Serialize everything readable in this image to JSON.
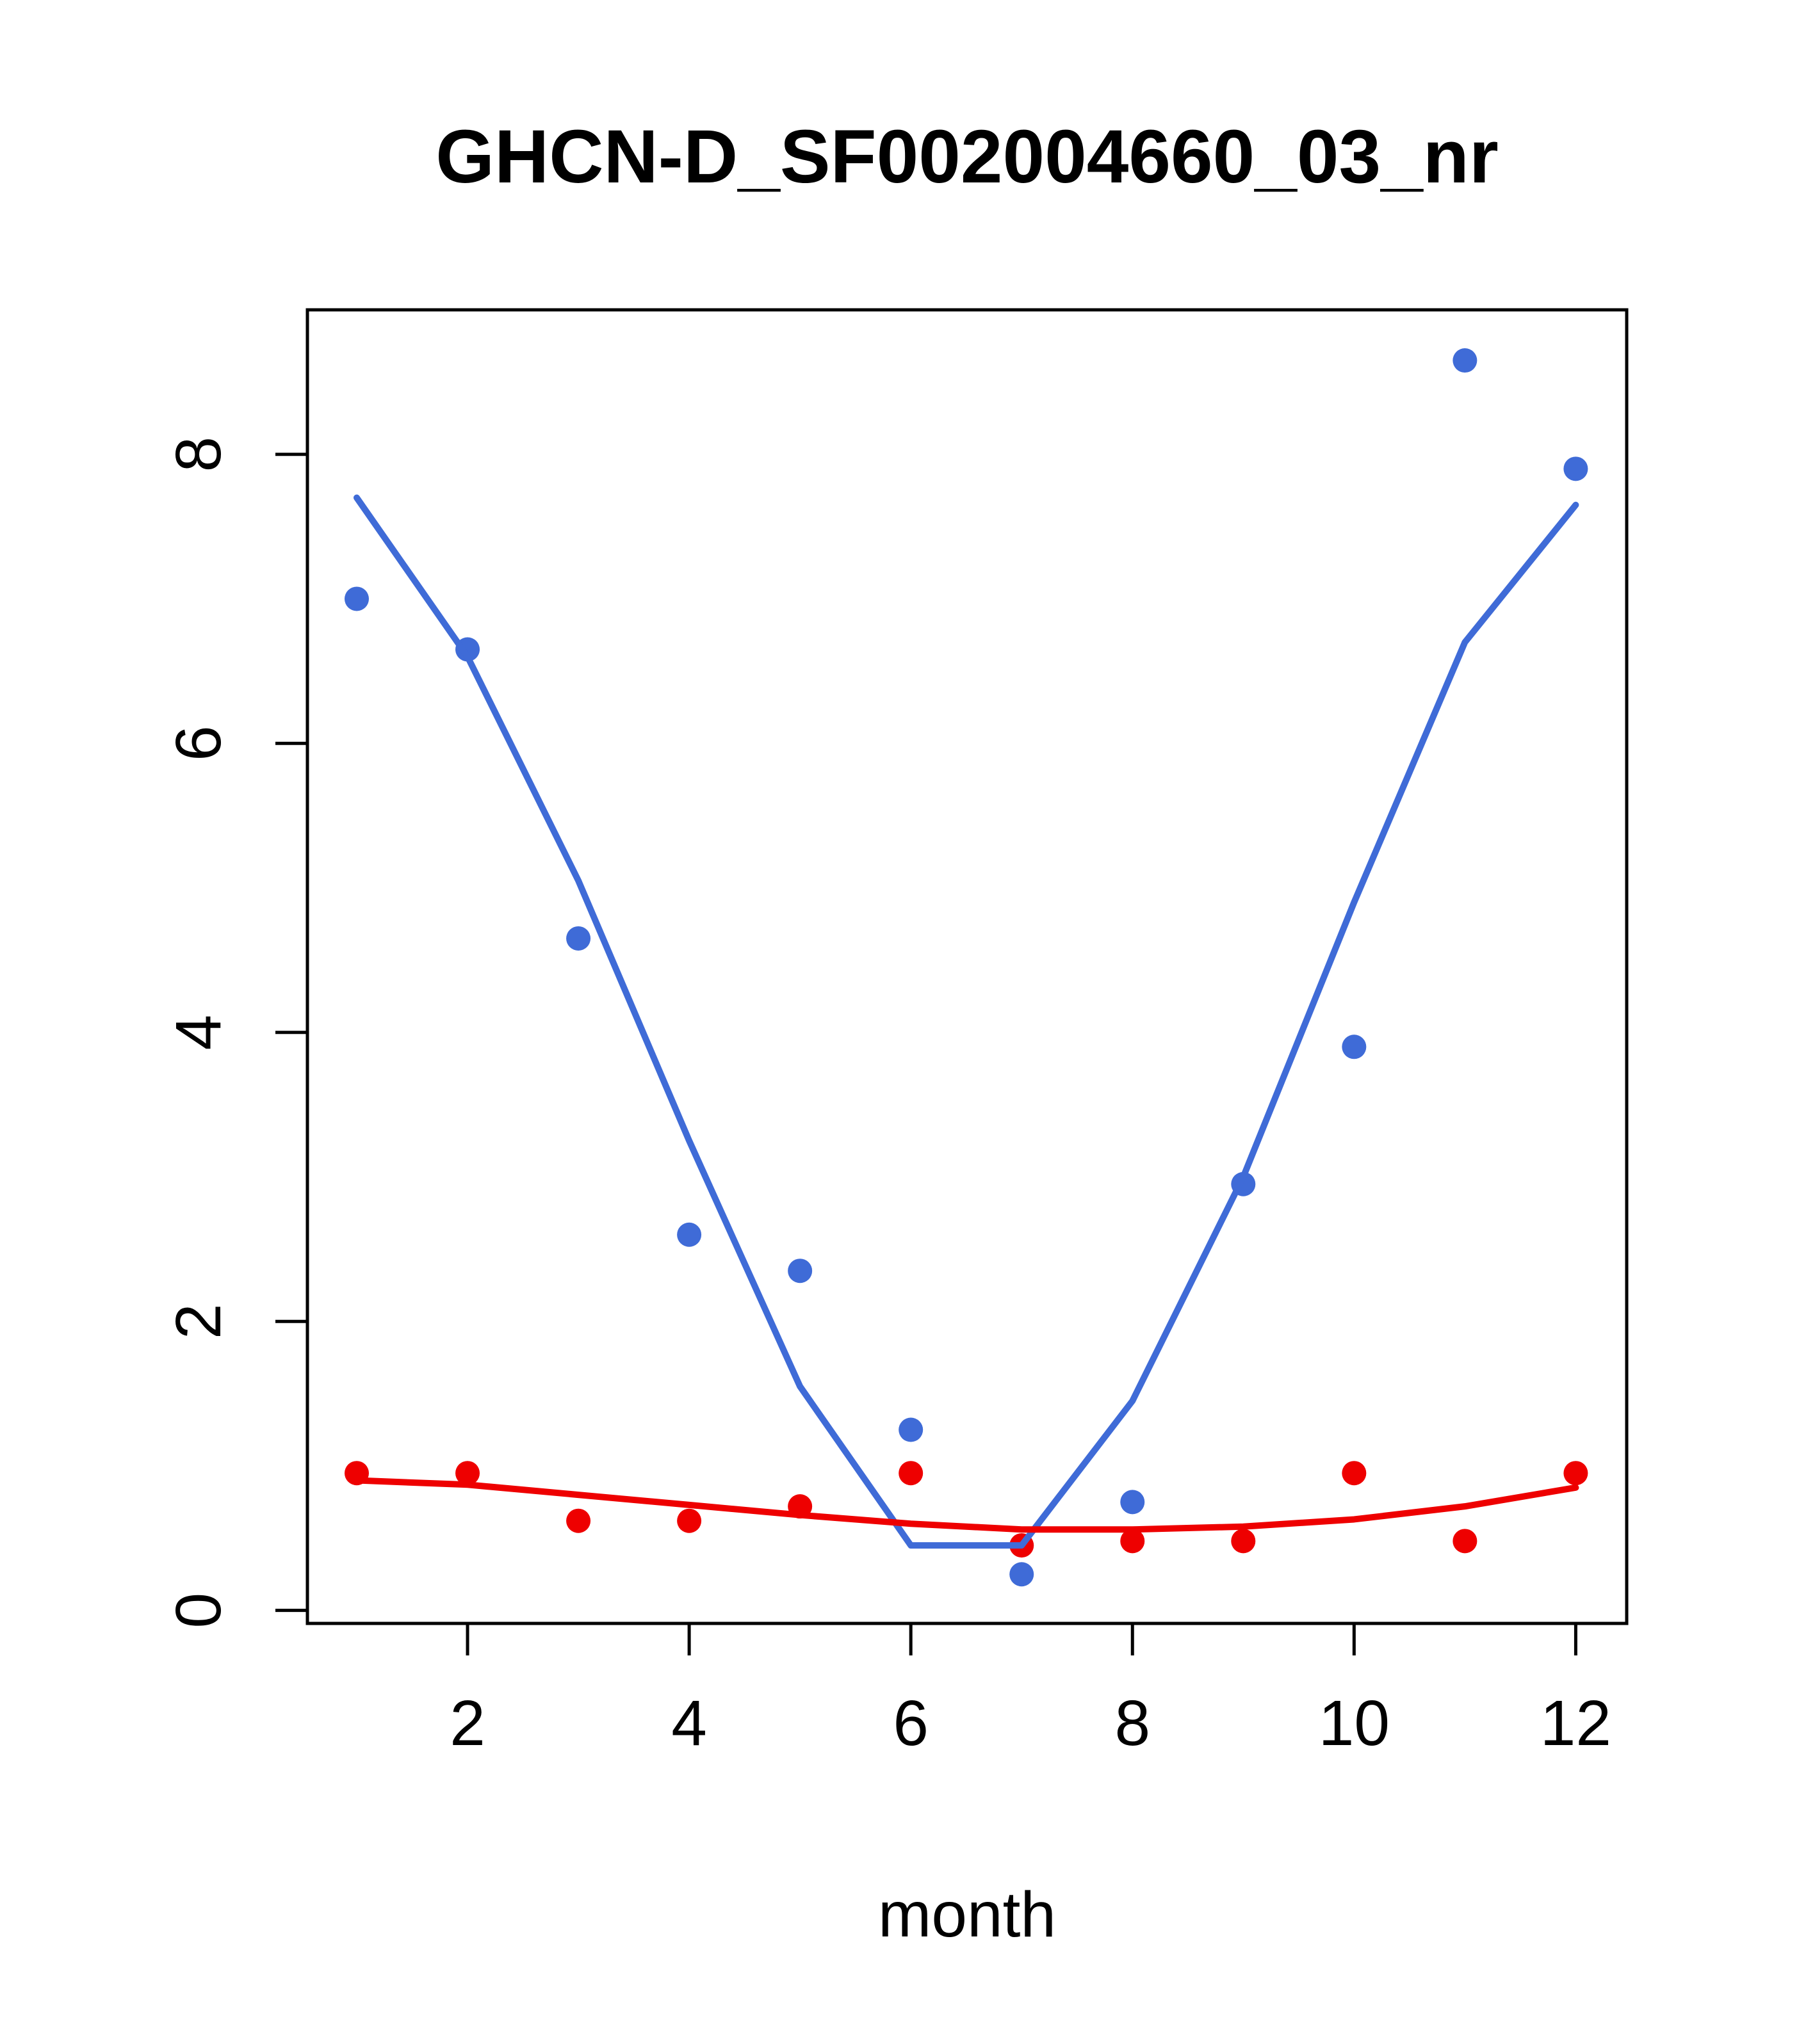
{
  "title": "GHCN-D_SF002004660_03_nr",
  "colors": {
    "blue": "#3F6BD7",
    "red": "#EE0000",
    "axis": "#000000",
    "background": "#FFFFFF"
  },
  "chart_data": {
    "type": "scatter",
    "title": "GHCN-D_SF002004660_03_nr",
    "xlabel": "month",
    "ylabel": "",
    "x_ticks": [
      2,
      4,
      6,
      8,
      10,
      12
    ],
    "y_ticks": [
      0,
      2,
      4,
      6,
      8
    ],
    "xlim": [
      0.555,
      12.46
    ],
    "ylim": [
      -0.09,
      9.0
    ],
    "grid": false,
    "legend": "none",
    "categories": [
      1,
      2,
      3,
      4,
      5,
      6,
      7,
      8,
      9,
      10,
      11,
      12
    ],
    "series": [
      {
        "name": "blue-points",
        "kind": "points",
        "color": "#3F6BD7",
        "x": [
          1,
          2,
          3,
          4,
          5,
          6,
          7,
          8,
          9,
          10,
          11,
          12
        ],
        "y": [
          7.0,
          6.65,
          4.65,
          2.6,
          2.35,
          1.25,
          0.25,
          0.75,
          2.95,
          3.9,
          8.65,
          7.9
        ]
      },
      {
        "name": "red-points",
        "kind": "points",
        "color": "#EE0000",
        "x": [
          1,
          2,
          3,
          4,
          5,
          6,
          7,
          8,
          9,
          10,
          11,
          12
        ],
        "y": [
          0.95,
          0.95,
          0.62,
          0.62,
          0.72,
          0.95,
          0.45,
          0.48,
          0.48,
          0.95,
          0.48,
          0.95
        ]
      },
      {
        "name": "blue-fit-line",
        "kind": "line",
        "color": "#3F6BD7",
        "x": [
          1,
          2,
          3,
          4,
          5,
          6,
          7,
          8,
          9,
          10,
          11,
          12
        ],
        "y": [
          7.7,
          6.6,
          5.05,
          3.25,
          1.55,
          0.45,
          0.45,
          1.45,
          3.0,
          4.9,
          6.7,
          7.65
        ]
      },
      {
        "name": "red-fit-line",
        "kind": "line",
        "color": "#EE0000",
        "x": [
          1,
          2,
          3,
          4,
          5,
          6,
          7,
          8,
          9,
          10,
          11,
          12
        ],
        "y": [
          0.9,
          0.87,
          0.8,
          0.73,
          0.66,
          0.6,
          0.56,
          0.56,
          0.58,
          0.63,
          0.72,
          0.85
        ]
      }
    ]
  }
}
